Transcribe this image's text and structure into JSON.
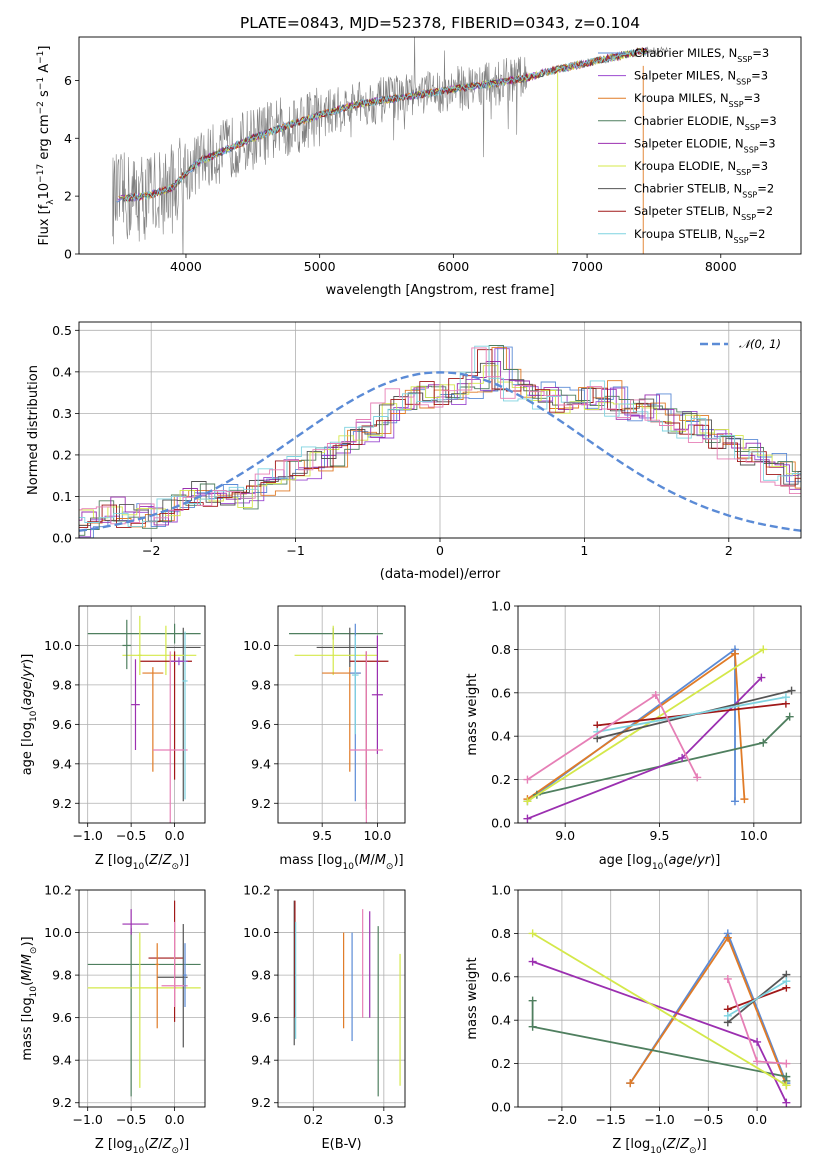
{
  "figure": {
    "title": "PLATE=0843, MJD=52378, FIBERID=0343, z=0.104",
    "colors": {
      "Chabrier MILES": "#5b8bd6",
      "Salpeter MILES": "#9b4ad0",
      "Kroupa MILES": "#e07b27",
      "Chabrier ELODIE": "#4f7f5f",
      "Salpeter ELODIE": "#9b2fb0",
      "Kroupa ELODIE": "#d4e84a",
      "Chabrier STELIB": "#555555",
      "Salpeter STELIB": "#a01818",
      "Kroupa STELIB": "#7fd3e0",
      "extra_pink": "#e67fb6",
      "data_gray": "#7f7f7f"
    }
  },
  "chart_data": [
    {
      "id": "spectrum",
      "type": "line",
      "title": "PLATE=0843, MJD=52378, FIBERID=0343, z=0.104",
      "xlabel": "wavelength [Angstrom, rest frame]",
      "ylabel": "Flux [f_λ 10^-17 erg cm^-2 s^-1 A^-1]",
      "xlim": [
        3200,
        8600
      ],
      "ylim": [
        0,
        7.5
      ],
      "xticks": [
        4000,
        5000,
        6000,
        7000,
        8000
      ],
      "yticks": [
        0,
        2,
        4,
        6
      ],
      "legend_position": "right",
      "legend": [
        {
          "name": "Chabrier MILES",
          "sub": "SSP",
          "n": "3"
        },
        {
          "name": "Salpeter MILES",
          "sub": "SSP",
          "n": "3"
        },
        {
          "name": "Kroupa MILES",
          "sub": "SSP",
          "n": "3"
        },
        {
          "name": "Chabrier ELODIE",
          "sub": "SSP",
          "n": "3"
        },
        {
          "name": "Salpeter ELODIE",
          "sub": "SSP",
          "n": "3"
        },
        {
          "name": "Kroupa ELODIE",
          "sub": "SSP",
          "n": "3"
        },
        {
          "name": "Chabrier STELIB",
          "sub": "SSP",
          "n": "2"
        },
        {
          "name": "Salpeter STELIB",
          "sub": "SSP",
          "n": "2"
        },
        {
          "name": "Kroupa STELIB",
          "sub": "SSP",
          "n": "2"
        }
      ],
      "model_curve": {
        "x": [
          3500,
          3700,
          3900,
          4000,
          4100,
          4300,
          4500,
          4800,
          5000,
          5300,
          5600,
          6000,
          6300,
          6560,
          6700,
          7000,
          7200,
          7400
        ],
        "y": [
          1.9,
          2.0,
          2.3,
          2.8,
          3.2,
          3.6,
          4.0,
          4.5,
          4.8,
          5.2,
          5.4,
          5.7,
          5.9,
          6.1,
          6.3,
          6.6,
          6.8,
          7.0
        ]
      },
      "noisy_data_range": [
        3450,
        6550
      ],
      "clean_data_range": [
        6550,
        7600
      ]
    },
    {
      "id": "residuals",
      "type": "histogram",
      "xlabel": "(data-model)/error",
      "ylabel": "Normed distribution",
      "xlim": [
        -2.5,
        2.5
      ],
      "ylim": [
        0,
        0.52
      ],
      "xticks": [
        -2,
        -1,
        0,
        1,
        2
      ],
      "yticks": [
        0.0,
        0.1,
        0.2,
        0.3,
        0.4,
        0.5
      ],
      "grid": true,
      "legend_position": "top-right",
      "reference_curve": {
        "label": "𝒩(0, 1)",
        "mean": 0,
        "sigma": 1
      },
      "bin_width": 0.1,
      "base_heights": [
        0.03,
        0.045,
        0.065,
        0.07,
        0.055,
        0.05,
        0.06,
        0.075,
        0.09,
        0.11,
        0.1,
        0.09,
        0.1,
        0.12,
        0.14,
        0.16,
        0.17,
        0.19,
        0.2,
        0.23,
        0.25,
        0.27,
        0.3,
        0.33,
        0.34,
        0.35,
        0.34,
        0.36,
        0.37,
        0.44,
        0.38,
        0.36,
        0.35,
        0.34,
        0.33,
        0.34,
        0.33,
        0.35,
        0.31,
        0.3,
        0.32,
        0.3,
        0.28,
        0.27,
        0.26,
        0.24,
        0.22,
        0.2,
        0.18,
        0.16,
        0.14,
        0.13,
        0.12,
        0.11,
        0.1,
        0.09,
        0.075,
        0.06,
        0.05,
        0.055,
        0.05,
        0.045,
        0.04,
        0.03,
        0.02,
        0.015,
        0.01,
        0.005,
        0.0,
        0.0
      ]
    },
    {
      "id": "age_vs_Z",
      "type": "scatter",
      "xlabel": "Z [log10(Z/Z⊙)]",
      "ylabel": "age [log10(age/yr)]",
      "xlim": [
        -1.1,
        0.35
      ],
      "ylim": [
        9.1,
        10.2
      ],
      "xticks": [
        -1.0,
        -0.5,
        0.0
      ],
      "yticks": [
        9.2,
        9.4,
        9.6,
        9.8,
        10.0
      ],
      "grid": true,
      "points": [
        {
          "series": "Chabrier ELODIE",
          "x": 0.0,
          "xerr": [
            1.0,
            0.3
          ],
          "y": 10.06,
          "yerr": [
            0.05,
            0.05
          ]
        },
        {
          "series": "Chabrier STELIB",
          "x": 0.1,
          "xerr": [
            0.2,
            0.2
          ],
          "y": 9.99,
          "yerr": [
            0.78,
            0.1
          ]
        },
        {
          "series": "Kroupa ELODIE",
          "x": -0.1,
          "xerr": [
            0.5,
            0.35
          ],
          "y": 9.95,
          "yerr": [
            0.1,
            0.15
          ]
        },
        {
          "series": "Salpeter STELIB",
          "x": 0.0,
          "xerr": [
            0.4,
            0.2
          ],
          "y": 9.92,
          "yerr": [
            0.6,
            0.05
          ]
        },
        {
          "series": "Salpeter MILES",
          "x": 0.05,
          "xerr": [
            0.1,
            0.1
          ],
          "y": 9.92,
          "yerr": [
            0.02,
            0.02
          ]
        },
        {
          "series": "Chabrier ELODIE",
          "x": -0.55,
          "xerr": [
            0.05,
            0.05
          ],
          "y": 10.0,
          "yerr": [
            0.12,
            0.13
          ]
        },
        {
          "series": "Salpeter ELODIE",
          "x": -0.45,
          "xerr": [
            0.05,
            0.05
          ],
          "y": 9.7,
          "yerr": [
            0.23,
            0.23
          ]
        },
        {
          "series": "Kroupa MILES",
          "x": -0.25,
          "xerr": [
            0.12,
            0.12
          ],
          "y": 9.86,
          "yerr": [
            0.5,
            0.03
          ]
        },
        {
          "series": "extra_pink",
          "x": -0.05,
          "xerr": [
            0.2,
            0.2
          ],
          "y": 9.47,
          "yerr": [
            0.5,
            0.5
          ]
        },
        {
          "series": "Kroupa STELIB",
          "x": 0.12,
          "xerr": [
            0.03,
            0.03
          ],
          "y": 9.82,
          "yerr": [
            0.6,
            0.25
          ]
        },
        {
          "series": "Kroupa ELODIE",
          "x": -0.4,
          "xerr": [
            0.02,
            0.02
          ],
          "y": 9.95,
          "yerr": [
            0.1,
            0.2
          ]
        }
      ]
    },
    {
      "id": "age_vs_mass",
      "type": "scatter",
      "xlabel": "mass [log10(M/M⊙)]",
      "ylabel": "",
      "xlim": [
        9.1,
        10.25
      ],
      "ylim": [
        9.1,
        10.2
      ],
      "xticks": [
        9.5,
        10.0
      ],
      "yticks": [
        9.2,
        9.4,
        9.6,
        9.8,
        10.0
      ],
      "grid": true,
      "points": [
        {
          "series": "Chabrier ELODIE",
          "x": 9.6,
          "xerr": [
            0.4,
            0.45
          ],
          "y": 10.06,
          "yerr": [
            0.03,
            0.03
          ]
        },
        {
          "series": "Chabrier STELIB",
          "x": 9.75,
          "xerr": [
            0.3,
            0.25
          ],
          "y": 9.99,
          "yerr": [
            0.1,
            0.1
          ]
        },
        {
          "series": "Kroupa ELODIE",
          "x": 9.6,
          "xerr": [
            0.35,
            0.4
          ],
          "y": 9.95,
          "yerr": [
            0.1,
            0.15
          ]
        },
        {
          "series": "Salpeter STELIB",
          "x": 9.9,
          "xerr": [
            0.15,
            0.2
          ],
          "y": 9.92,
          "yerr": [
            0.75,
            0.05
          ]
        },
        {
          "series": "Kroupa MILES",
          "x": 9.75,
          "xerr": [
            0.25,
            0.1
          ],
          "y": 9.86,
          "yerr": [
            0.5,
            0.03
          ]
        },
        {
          "series": "Chabrier MILES",
          "x": 9.8,
          "xerr": [
            0.05,
            0.05
          ],
          "y": 9.86,
          "yerr": [
            0.65,
            0.25
          ]
        },
        {
          "series": "Salpeter ELODIE",
          "x": 10.0,
          "xerr": [
            0.05,
            0.05
          ],
          "y": 9.75,
          "yerr": [
            0.3,
            0.3
          ]
        },
        {
          "series": "extra_pink",
          "x": 9.9,
          "xerr": [
            0.15,
            0.15
          ],
          "y": 9.47,
          "yerr": [
            0.5,
            0.5
          ]
        },
        {
          "series": "Kroupa STELIB",
          "x": 9.8,
          "xerr": [
            0.03,
            0.03
          ],
          "y": 9.85,
          "yerr": [
            0.3,
            0.2
          ]
        }
      ]
    },
    {
      "id": "massweight_vs_age",
      "type": "line",
      "xlabel": "age [log10(age/yr)]",
      "ylabel": "mass weight",
      "xlim": [
        8.75,
        10.25
      ],
      "ylim": [
        0,
        1.0
      ],
      "xticks": [
        9.0,
        9.5,
        10.0
      ],
      "yticks": [
        0.0,
        0.2,
        0.4,
        0.6,
        0.8,
        1.0
      ],
      "grid": true,
      "series": [
        {
          "name": "Chabrier MILES",
          "x": [
            8.8,
            9.9,
            9.9
          ],
          "y": [
            0.1,
            0.8,
            0.1
          ]
        },
        {
          "name": "Kroupa MILES",
          "x": [
            8.8,
            9.9,
            9.95
          ],
          "y": [
            0.11,
            0.78,
            0.11
          ]
        },
        {
          "name": "Chabrier ELODIE",
          "x": [
            8.85,
            10.05,
            10.19
          ],
          "y": [
            0.13,
            0.37,
            0.49
          ]
        },
        {
          "name": "Salpeter ELODIE",
          "x": [
            8.8,
            9.62,
            10.04
          ],
          "y": [
            0.02,
            0.3,
            0.67
          ]
        },
        {
          "name": "Kroupa ELODIE",
          "x": [
            8.8,
            10.05
          ],
          "y": [
            0.1,
            0.8
          ]
        },
        {
          "name": "Chabrier STELIB",
          "x": [
            9.17,
            10.2
          ],
          "y": [
            0.39,
            0.61
          ]
        },
        {
          "name": "Salpeter STELIB",
          "x": [
            9.17,
            10.17
          ],
          "y": [
            0.45,
            0.55
          ]
        },
        {
          "name": "Kroupa STELIB",
          "x": [
            9.17,
            10.17
          ],
          "y": [
            0.42,
            0.58
          ]
        },
        {
          "name": "extra_pink",
          "x": [
            8.8,
            9.48,
            9.7
          ],
          "y": [
            0.2,
            0.59,
            0.21
          ]
        }
      ]
    },
    {
      "id": "mass_vs_Z",
      "type": "scatter",
      "xlabel": "Z [log10(Z/Z⊙)]",
      "ylabel": "mass [log10(M/M⊙)]",
      "xlim": [
        -1.1,
        0.35
      ],
      "ylim": [
        9.18,
        10.2
      ],
      "xticks": [
        -1.0,
        -0.5,
        0.0
      ],
      "yticks": [
        9.2,
        9.4,
        9.6,
        9.8,
        10.0,
        10.2
      ],
      "grid": true,
      "points": [
        {
          "series": "Chabrier ELODIE",
          "x": -0.5,
          "xerr": [
            0.5,
            0.8
          ],
          "y": 9.85,
          "yerr": [
            0.62,
            0.17
          ]
        },
        {
          "series": "Kroupa ELODIE",
          "x": -0.4,
          "xerr": [
            0.6,
            0.7
          ],
          "y": 9.74,
          "yerr": [
            0.47,
            0.26
          ]
        },
        {
          "series": "Salpeter ELODIE",
          "x": -0.5,
          "xerr": [
            0.1,
            0.2
          ],
          "y": 10.04,
          "yerr": [
            0.05,
            0.07
          ]
        },
        {
          "series": "Salpeter STELIB",
          "x": 0.0,
          "xerr": [
            0.3,
            0.1
          ],
          "y": 9.88,
          "yerr": [
            0.3,
            0.27
          ]
        },
        {
          "series": "Chabrier STELIB",
          "x": 0.1,
          "xerr": [
            0.3,
            0.05
          ],
          "y": 9.79,
          "yerr": [
            0.33,
            0.25
          ]
        },
        {
          "series": "Kroupa MILES",
          "x": -0.2,
          "xerr": [
            0.02,
            0.02
          ],
          "y": 9.85,
          "yerr": [
            0.3,
            0.1
          ]
        },
        {
          "series": "extra_pink",
          "x": 0.0,
          "xerr": [
            0.15,
            0.15
          ],
          "y": 9.75,
          "yerr": [
            0.1,
            0.3
          ]
        },
        {
          "series": "Chabrier MILES",
          "x": 0.12,
          "xerr": [
            0.02,
            0.02
          ],
          "y": 9.8,
          "yerr": [
            0.15,
            0.15
          ]
        }
      ]
    },
    {
      "id": "mass_vs_EBV",
      "type": "scatter",
      "xlabel": "E(B-V)",
      "ylabel": "",
      "xlim": [
        0.15,
        0.33
      ],
      "ylim": [
        9.18,
        10.2
      ],
      "xticks": [
        0.2,
        0.3
      ],
      "yticks": [
        9.2,
        9.4,
        9.6,
        9.8,
        10.0,
        10.2
      ],
      "grid": true,
      "points": [
        {
          "series": "Chabrier STELIB",
          "x": 0.173,
          "xerr": [
            0,
            0
          ],
          "y": 9.8,
          "yerr": [
            0.33,
            0.35
          ]
        },
        {
          "series": "Salpeter STELIB",
          "x": 0.174,
          "xerr": [
            0,
            0
          ],
          "y": 9.9,
          "yerr": [
            0.3,
            0.25
          ]
        },
        {
          "series": "Kroupa STELIB",
          "x": 0.175,
          "xerr": [
            0,
            0
          ],
          "y": 9.7,
          "yerr": [
            0.2,
            0.35
          ]
        },
        {
          "series": "Kroupa MILES",
          "x": 0.243,
          "xerr": [
            0,
            0
          ],
          "y": 9.85,
          "yerr": [
            0.3,
            0.15
          ]
        },
        {
          "series": "Chabrier MILES",
          "x": 0.255,
          "xerr": [
            0,
            0
          ],
          "y": 9.75,
          "yerr": [
            0.26,
            0.25
          ]
        },
        {
          "series": "extra_pink",
          "x": 0.27,
          "xerr": [
            0,
            0
          ],
          "y": 9.9,
          "yerr": [
            0.3,
            0.21
          ]
        },
        {
          "series": "Salpeter ELODIE",
          "x": 0.28,
          "xerr": [
            0,
            0
          ],
          "y": 9.85,
          "yerr": [
            0.25,
            0.25
          ]
        },
        {
          "series": "Chabrier ELODIE",
          "x": 0.292,
          "xerr": [
            0,
            0
          ],
          "y": 9.6,
          "yerr": [
            0.37,
            0.43
          ]
        },
        {
          "series": "Kroupa ELODIE",
          "x": 0.323,
          "xerr": [
            0,
            0
          ],
          "y": 9.6,
          "yerr": [
            0.32,
            0.3
          ]
        }
      ]
    },
    {
      "id": "massweight_vs_Z",
      "type": "line",
      "xlabel": "Z [log10(Z/Z⊙)]",
      "ylabel": "mass weight",
      "xlim": [
        -2.45,
        0.45
      ],
      "ylim": [
        0,
        1.0
      ],
      "xticks": [
        -2.0,
        -1.5,
        -1.0,
        -0.5,
        0.0
      ],
      "yticks": [
        0.0,
        0.2,
        0.4,
        0.6,
        0.8,
        1.0
      ],
      "grid": true,
      "series": [
        {
          "name": "Chabrier MILES",
          "x": [
            -1.3,
            -0.3,
            0.3
          ],
          "y": [
            0.11,
            0.8,
            0.11
          ]
        },
        {
          "name": "Kroupa MILES",
          "x": [
            -1.3,
            -0.3,
            0.3
          ],
          "y": [
            0.11,
            0.78,
            0.1
          ]
        },
        {
          "name": "Chabrier ELODIE",
          "x": [
            -2.3,
            -2.3,
            0.3,
            0.3
          ],
          "y": [
            0.49,
            0.37,
            0.14,
            0.12
          ]
        },
        {
          "name": "Salpeter ELODIE",
          "x": [
            -2.3,
            0.0,
            0.3
          ],
          "y": [
            0.67,
            0.3,
            0.02
          ]
        },
        {
          "name": "Kroupa ELODIE",
          "x": [
            -2.3,
            0.3
          ],
          "y": [
            0.8,
            0.1
          ]
        },
        {
          "name": "Chabrier STELIB",
          "x": [
            -0.3,
            0.3
          ],
          "y": [
            0.39,
            0.61
          ]
        },
        {
          "name": "Salpeter STELIB",
          "x": [
            -0.3,
            0.3
          ],
          "y": [
            0.45,
            0.55
          ]
        },
        {
          "name": "Kroupa STELIB",
          "x": [
            -0.3,
            0.3
          ],
          "y": [
            0.42,
            0.58
          ]
        },
        {
          "name": "extra_pink",
          "x": [
            -0.3,
            0.0,
            0.3
          ],
          "y": [
            0.59,
            0.21,
            0.2
          ]
        }
      ]
    }
  ]
}
